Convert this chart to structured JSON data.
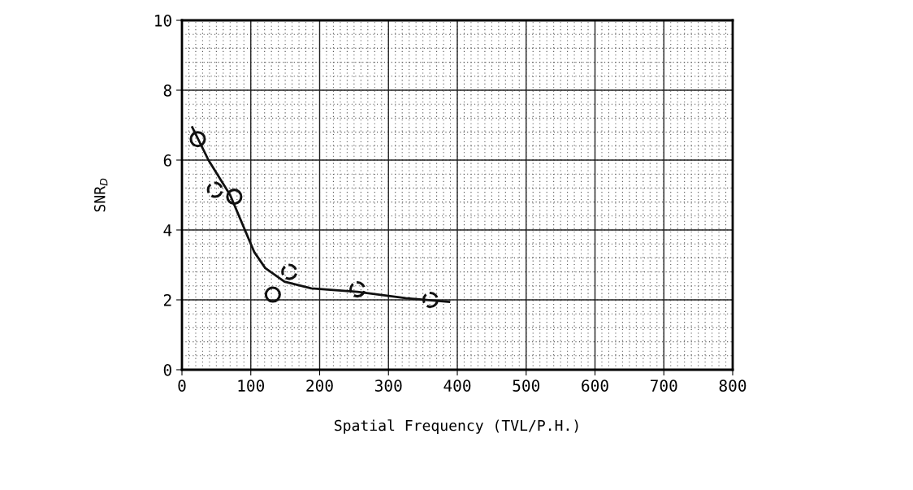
{
  "chart_data": {
    "type": "scatter",
    "xlabel": "Spatial Frequency (TVL/P.H.)",
    "ylabel": "SNR$_{D}$",
    "xlim": [
      0,
      800
    ],
    "ylim": [
      0,
      10
    ],
    "xticks": [
      0,
      100,
      200,
      300,
      400,
      500,
      600,
      700,
      800
    ],
    "yticks": [
      0,
      2,
      4,
      6,
      8,
      10
    ],
    "grid": true,
    "series": [
      {
        "type": "line",
        "color": "#111111",
        "marker": "none",
        "x": [
          15,
          38.5,
          70,
          105,
          121,
          149,
          188,
          255,
          325,
          388
        ],
        "values": [
          6.94,
          6.0,
          5.0,
          3.37,
          2.91,
          2.52,
          2.33,
          2.23,
          2.05,
          1.94
        ]
      },
      {
        "type": "scatter",
        "color": "#111111",
        "marker": "circle",
        "x": [
          23,
          76,
          132
        ],
        "values": [
          6.6,
          4.95,
          2.15
        ]
      },
      {
        "color": "#111111",
        "marker": "circle",
        "line_style": "dashed",
        "x": [
          48,
          156,
          255,
          361
        ],
        "values": [
          5.15,
          2.8,
          2.3,
          2.0
        ]
      }
    ]
  }
}
